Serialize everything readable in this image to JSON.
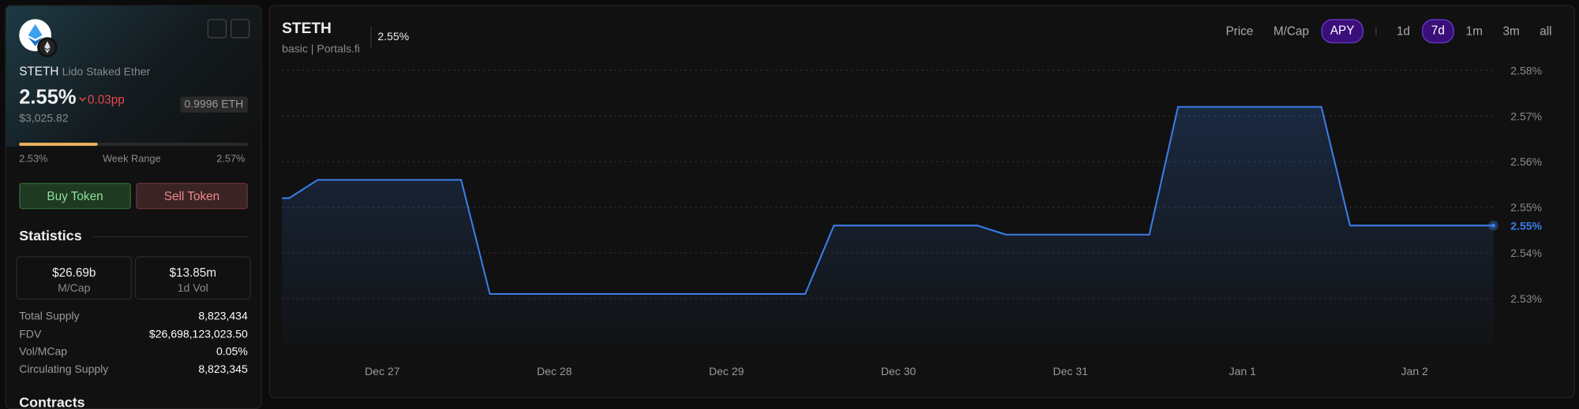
{
  "sidebar": {
    "symbol": "STETH",
    "name": "Lido Staked Ether",
    "apy": "2.55%",
    "change": "0.03pp",
    "price": "$3,025.82",
    "eth_price": "0.9996 ETH",
    "range": {
      "low": "2.53%",
      "label": "Week Range",
      "high": "2.57%"
    },
    "buttons": [
      "Buy Token",
      "Sell Token"
    ],
    "statistics": {
      "title": "Statistics",
      "cards": [
        {
          "value": "$26.69b",
          "label": "M/Cap"
        },
        {
          "value": "$13.85m",
          "label": "1d Vol"
        }
      ],
      "rows": [
        [
          "Total Supply",
          "8,823,434"
        ],
        [
          "FDV",
          "$26,698,123,023.50"
        ],
        [
          "Vol/MCap",
          "0.05%"
        ],
        [
          "Circulating Supply",
          "8,823,345"
        ]
      ]
    },
    "contracts_title": "Contracts"
  },
  "header": {
    "title": "STETH",
    "subtitle": "basic | Portals.fi",
    "value": "2.55%",
    "metrics": [
      "Price",
      "M/Cap",
      "APY"
    ],
    "active_metric": "APY",
    "ranges": [
      "1d",
      "7d",
      "1m",
      "3m",
      "all"
    ],
    "active_range": "7d"
  },
  "chart_data": {
    "type": "line",
    "fill": true,
    "x": [
      -14,
      -13,
      -9,
      11,
      15,
      59,
      63,
      83,
      87,
      107,
      111,
      131,
      135,
      155
    ],
    "xlim": [
      -14,
      155
    ],
    "xticks": [
      {
        "value": 0,
        "label": "Dec 27"
      },
      {
        "value": 24,
        "label": "Dec 28"
      },
      {
        "value": 48,
        "label": "Dec 29"
      },
      {
        "value": 72,
        "label": "Dec 30"
      },
      {
        "value": 96,
        "label": "Dec 31"
      },
      {
        "value": 120,
        "label": "Jan 1"
      },
      {
        "value": 144,
        "label": "Jan 2"
      }
    ],
    "series": [
      {
        "name": "APY",
        "color": "#3b7de8",
        "values": [
          2.552,
          2.552,
          2.556,
          2.556,
          2.531,
          2.531,
          2.546,
          2.546,
          2.544,
          2.544,
          2.572,
          2.572,
          2.546,
          2.546
        ],
        "value_labels": [
          null,
          null,
          null,
          null,
          null,
          null,
          null,
          null,
          null,
          null,
          null,
          null,
          null,
          "2.55%"
        ]
      }
    ],
    "ylim": [
      2.52,
      2.58
    ],
    "yticks": [
      {
        "value": 2.53,
        "label": "2.53%"
      },
      {
        "value": 2.54,
        "label": "2.54%"
      },
      {
        "value": 2.55,
        "label": "2.55%"
      },
      {
        "value": 2.56,
        "label": "2.56%"
      },
      {
        "value": 2.57,
        "label": "2.57%"
      },
      {
        "value": 2.58,
        "label": "2.58%"
      }
    ],
    "grid": true
  }
}
